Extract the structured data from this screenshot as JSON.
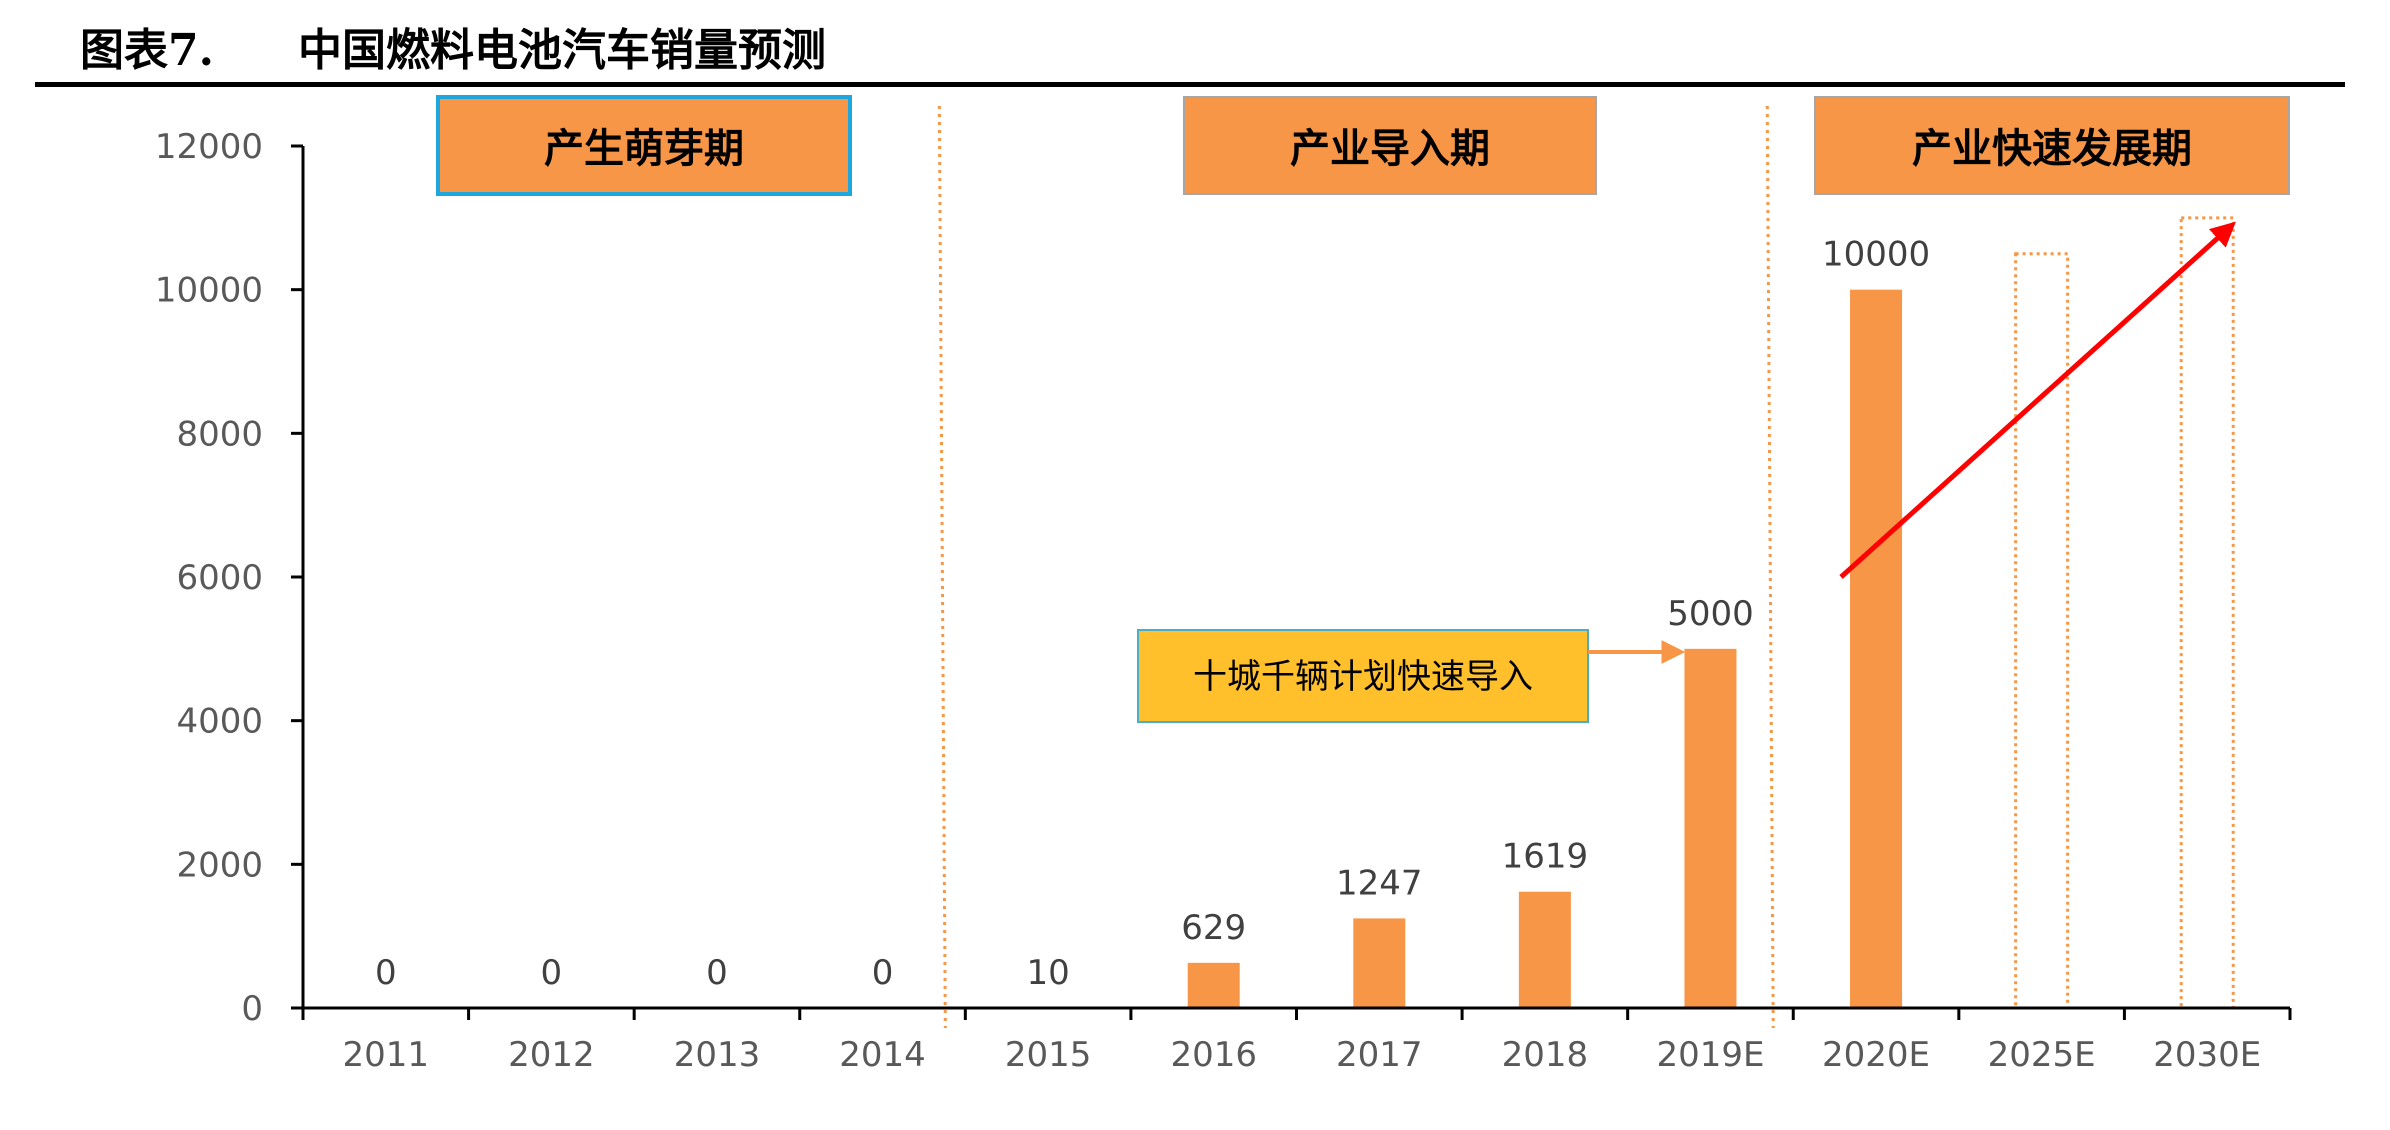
{
  "header": {
    "figure_number": "图表7.",
    "title": "中国燃料电池汽车销量预测"
  },
  "chart_data": {
    "type": "bar",
    "title": "中国燃料电池汽车销量预测",
    "xlabel": "",
    "ylabel": "",
    "ylim": [
      0,
      12000
    ],
    "yticks": [
      "0",
      "2000",
      "4000",
      "6000",
      "8000",
      "10000",
      "12000"
    ],
    "categories": [
      "2011",
      "2012",
      "2013",
      "2014",
      "2015",
      "2016",
      "2017",
      "2018",
      "2019E",
      "2020E",
      "2025E",
      "2030E"
    ],
    "values": [
      0,
      0,
      0,
      0,
      10,
      629,
      1247,
      1619,
      5000,
      10000,
      null,
      null
    ],
    "data_labels": [
      "0",
      "0",
      "0",
      "0",
      "10",
      "629",
      "1247",
      "1619",
      "5000",
      "10000",
      "",
      ""
    ],
    "projected_placeholders": [
      {
        "category": "2025E",
        "approx_value": 10500
      },
      {
        "category": "2030E",
        "approx_value": 11000
      }
    ],
    "bar_color": "#F79646",
    "phases": [
      {
        "label": "产生萌芽期",
        "from": "2011",
        "to": "2014"
      },
      {
        "label": "产业导入期",
        "from": "2015",
        "to": "2019E"
      },
      {
        "label": "产业快速发展期",
        "from": "2020E",
        "to": "2030E"
      }
    ],
    "callout": {
      "label": "十城千辆计划快速导入",
      "target": "2019E"
    },
    "trend_arrow": {
      "from_category": "2020E",
      "from_value": 6000,
      "to_category": "2030E",
      "to_value": 10900,
      "color": "#FF0000"
    },
    "grid": false,
    "legend": "none"
  },
  "colors": {
    "bar": "#F79646",
    "phase_box": "#F79646",
    "phase_border_first": "#1FA6DC",
    "phase_border": "#A6A6A6",
    "callout_box": "#FFC02B",
    "callout_border": "#4BACC6",
    "trend_arrow": "#FF0000",
    "divider": "#F79646",
    "axis": "#000000"
  }
}
